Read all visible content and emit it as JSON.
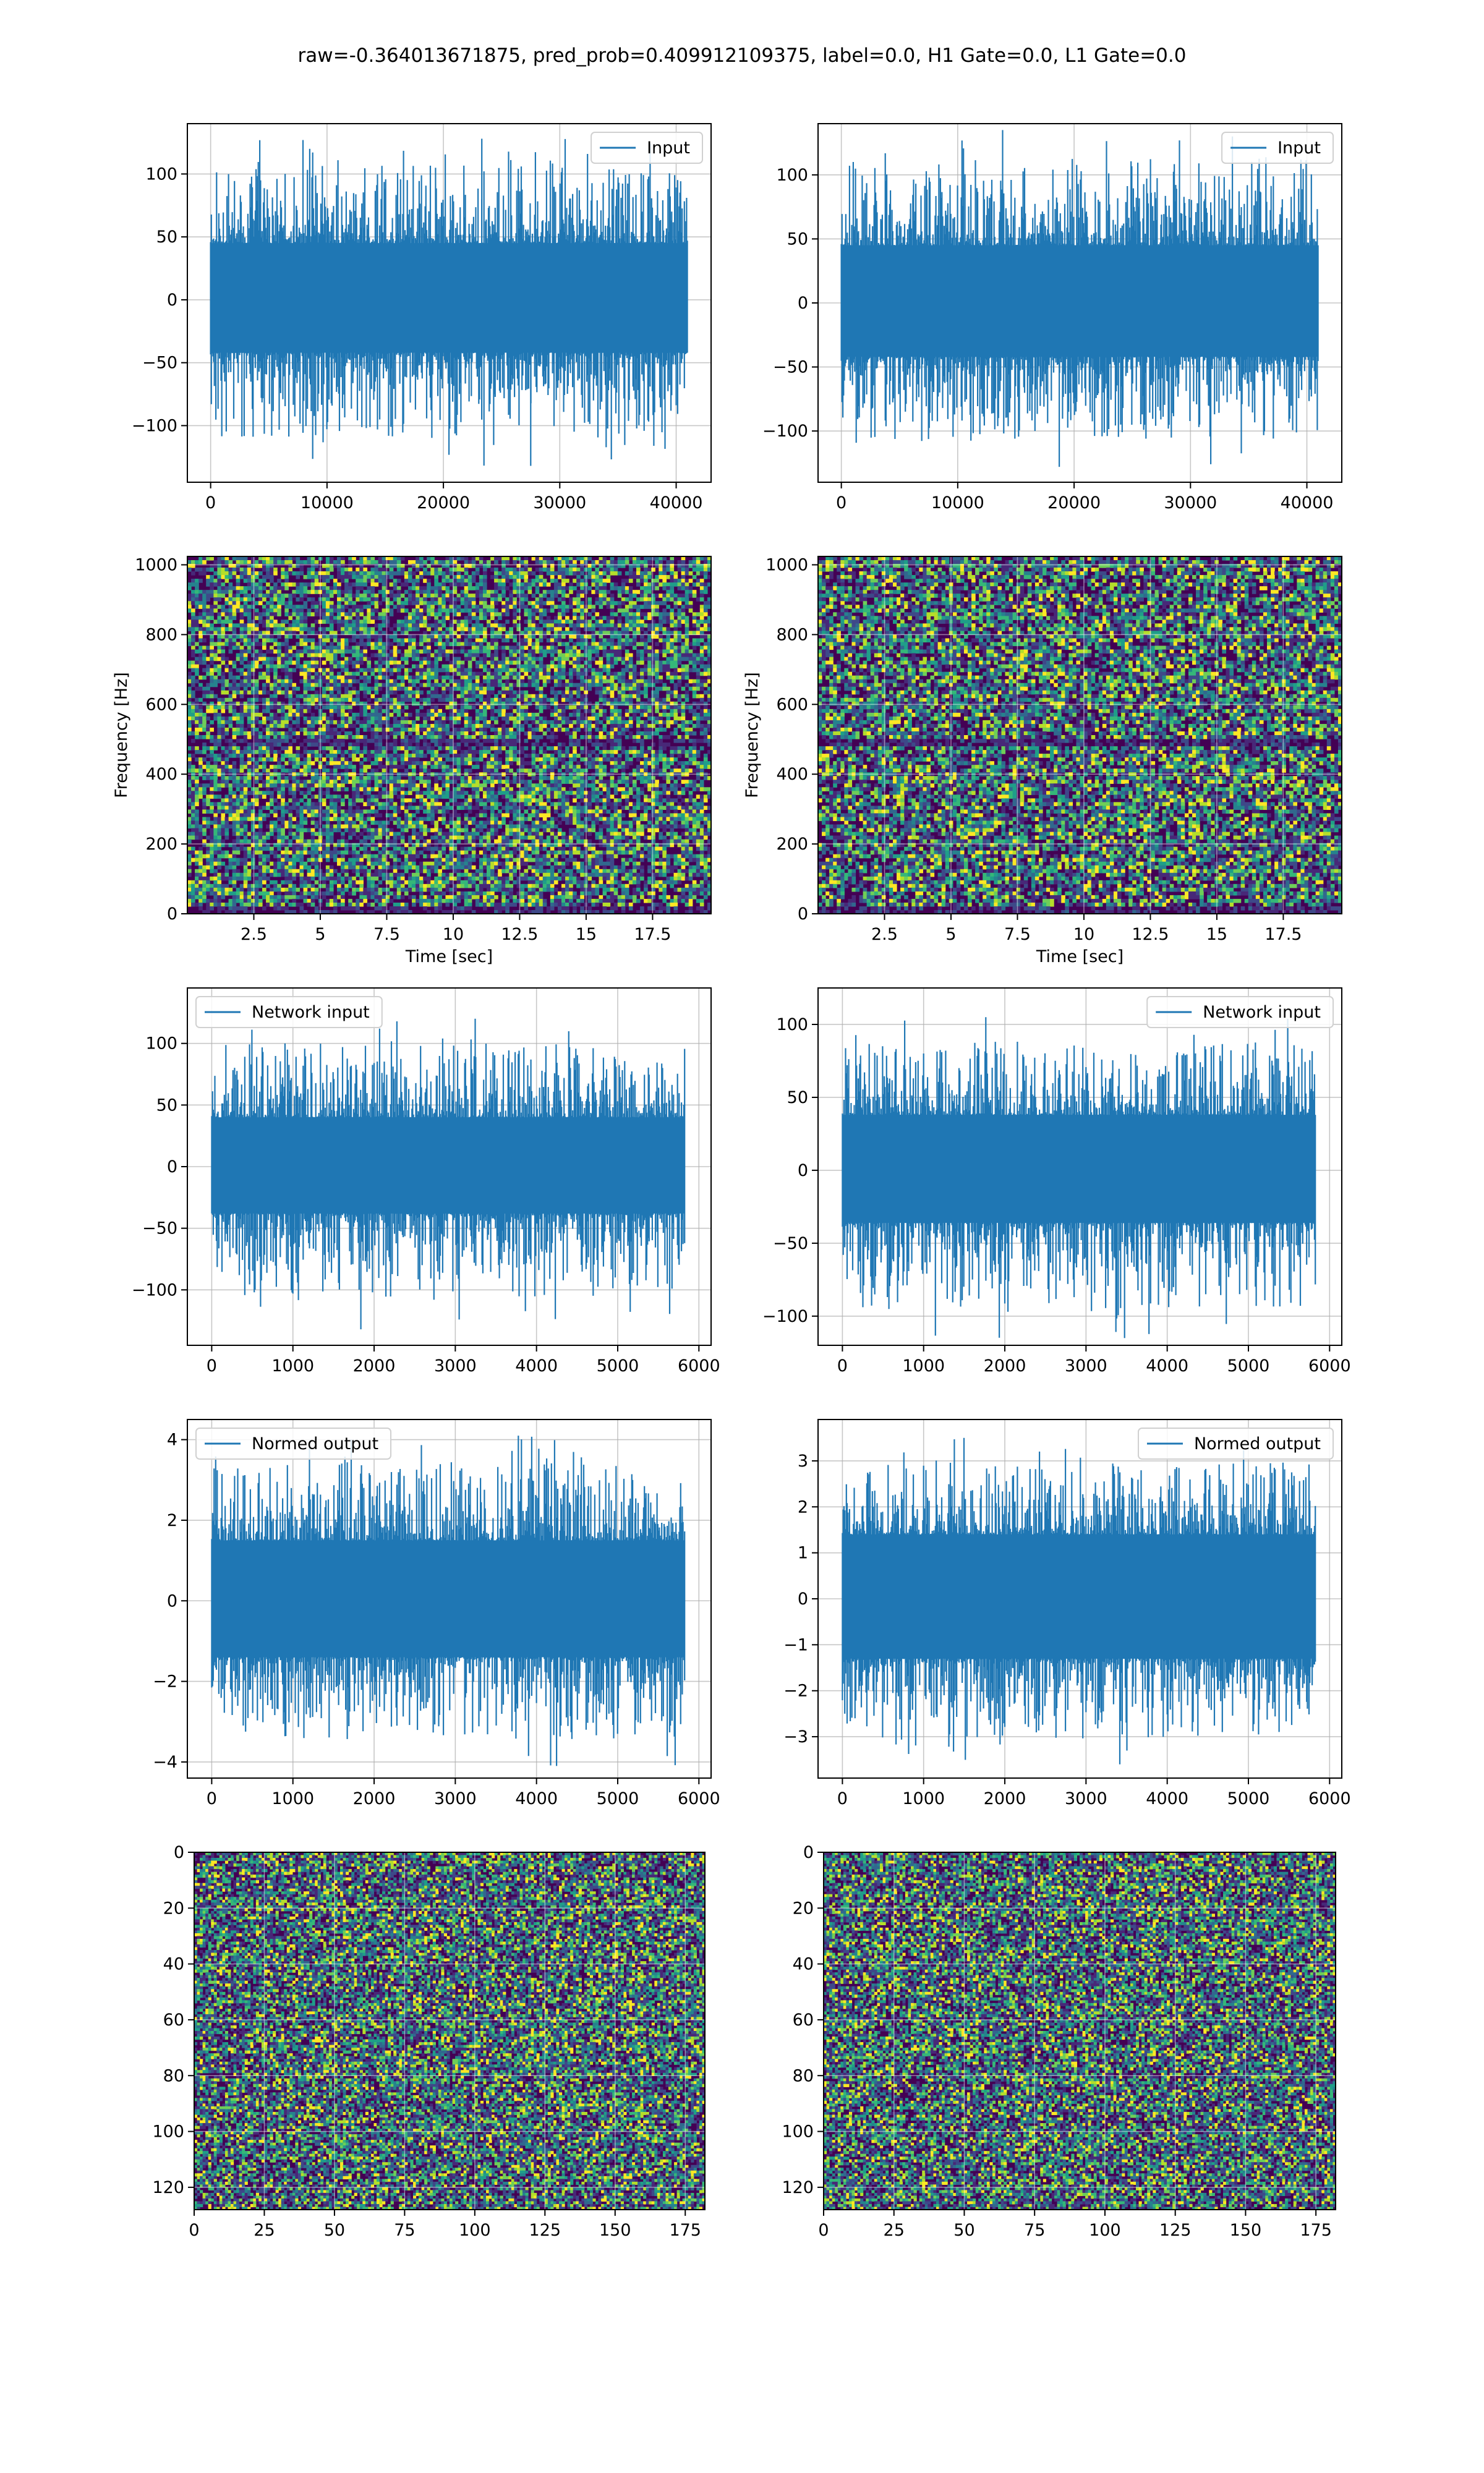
{
  "figure": {
    "suptitle": "raw=-0.364013671875, pred_prob=0.409912109375, label=0.0, H1 Gate=0.0, L1 Gate=0.0"
  },
  "colors": {
    "line": "#1f77b4",
    "viridis": [
      "#440154",
      "#482878",
      "#3e4989",
      "#31688e",
      "#26828e",
      "#1f9e89",
      "#35b779",
      "#6ece58",
      "#b5de2b",
      "#fde725"
    ]
  },
  "chart_data": [
    {
      "id": "input-left",
      "type": "line",
      "legend": "Input",
      "legend_position": "top-right",
      "grid": true,
      "xlim": [
        -2000,
        43000
      ],
      "ylim": [
        -145,
        140
      ],
      "xticks": [
        0,
        10000,
        20000,
        30000,
        40000
      ],
      "yticks": [
        -100,
        -50,
        0,
        50,
        100
      ],
      "n": 40960,
      "x_end": 40960,
      "body": [
        -42,
        45
      ],
      "spikes": [
        -132,
        128
      ],
      "samples": 640,
      "seed": 11
    },
    {
      "id": "input-right",
      "type": "line",
      "legend": "Input",
      "legend_position": "top-right",
      "grid": true,
      "xlim": [
        -2000,
        43000
      ],
      "ylim": [
        -140,
        140
      ],
      "xticks": [
        0,
        10000,
        20000,
        30000,
        40000
      ],
      "yticks": [
        -100,
        -50,
        0,
        50,
        100
      ],
      "n": 40960,
      "x_end": 40960,
      "body": [
        -42,
        45
      ],
      "spikes": [
        -128,
        135
      ],
      "samples": 640,
      "seed": 23
    },
    {
      "id": "spectrogram-left",
      "type": "heatmap",
      "grid": true,
      "xlabel": "Time [sec]",
      "ylabel": "Frequency [Hz]",
      "xlim": [
        0,
        19.7
      ],
      "ylim": [
        0,
        1024
      ],
      "xticks": [
        2.5,
        5.0,
        7.5,
        10.0,
        12.5,
        15.0,
        17.5
      ],
      "yticks": [
        0,
        200,
        400,
        600,
        800,
        1000
      ],
      "cols": 140,
      "rows": 96,
      "dark_rows": [
        0.48,
        0.01
      ],
      "seed": 31
    },
    {
      "id": "spectrogram-right",
      "type": "heatmap",
      "grid": true,
      "xlabel": "Time [sec]",
      "ylabel": "Frequency [Hz]",
      "xlim": [
        0,
        19.7
      ],
      "ylim": [
        0,
        1024
      ],
      "xticks": [
        2.5,
        5.0,
        7.5,
        10.0,
        12.5,
        15.0,
        17.5
      ],
      "yticks": [
        0,
        200,
        400,
        600,
        800,
        1000
      ],
      "cols": 140,
      "rows": 96,
      "dark_rows": [
        0.48,
        0.01
      ],
      "seed": 47
    },
    {
      "id": "network-input-left",
      "type": "line",
      "legend": "Network input",
      "legend_position": "top-left",
      "grid": true,
      "xlim": [
        -300,
        6150
      ],
      "ylim": [
        -145,
        145
      ],
      "xticks": [
        0,
        1000,
        2000,
        3000,
        4000,
        5000,
        6000
      ],
      "yticks": [
        -100,
        -50,
        0,
        50,
        100
      ],
      "n": 5824,
      "x_end": 5824,
      "body": [
        -38,
        40
      ],
      "spikes": [
        -132,
        120
      ],
      "samples": 600,
      "seed": 53
    },
    {
      "id": "network-input-right",
      "type": "line",
      "legend": "Network input",
      "legend_position": "top-right",
      "grid": true,
      "xlim": [
        -300,
        6150
      ],
      "ylim": [
        -120,
        125
      ],
      "xticks": [
        0,
        1000,
        2000,
        3000,
        4000,
        5000,
        6000
      ],
      "yticks": [
        -100,
        -50,
        0,
        50,
        100
      ],
      "n": 5824,
      "x_end": 5824,
      "body": [
        -36,
        38
      ],
      "spikes": [
        -115,
        105
      ],
      "samples": 600,
      "seed": 67
    },
    {
      "id": "normed-output-left",
      "type": "line",
      "legend": "Normed output",
      "legend_position": "top-left",
      "grid": true,
      "xlim": [
        -300,
        6150
      ],
      "ylim": [
        -4.4,
        4.5
      ],
      "xticks": [
        0,
        1000,
        2000,
        3000,
        4000,
        5000,
        6000
      ],
      "yticks": [
        -4,
        -2,
        0,
        2,
        4
      ],
      "n": 5824,
      "x_end": 5824,
      "body": [
        -1.4,
        1.5
      ],
      "spikes": [
        -4.1,
        4.1
      ],
      "samples": 600,
      "seed": 71
    },
    {
      "id": "normed-output-right",
      "type": "line",
      "legend": "Normed output",
      "legend_position": "top-right",
      "grid": true,
      "xlim": [
        -300,
        6150
      ],
      "ylim": [
        -3.9,
        3.9
      ],
      "xticks": [
        0,
        1000,
        2000,
        3000,
        4000,
        5000,
        6000
      ],
      "yticks": [
        -3,
        -2,
        -1,
        0,
        1,
        2,
        3
      ],
      "n": 5824,
      "x_end": 5824,
      "body": [
        -1.3,
        1.4
      ],
      "spikes": [
        -3.6,
        3.5
      ],
      "samples": 600,
      "seed": 83
    },
    {
      "id": "matrix-left",
      "type": "heatmap",
      "grid": true,
      "xlim": [
        0,
        182
      ],
      "ylim": [
        128,
        0
      ],
      "xticks": [
        0,
        25,
        50,
        75,
        100,
        125,
        150,
        175
      ],
      "yticks": [
        0,
        20,
        40,
        60,
        80,
        100,
        120
      ],
      "cols": 182,
      "rows": 128,
      "seed": 97
    },
    {
      "id": "matrix-right",
      "type": "heatmap",
      "grid": true,
      "xlim": [
        0,
        182
      ],
      "ylim": [
        128,
        0
      ],
      "xticks": [
        0,
        25,
        50,
        75,
        100,
        125,
        150,
        175
      ],
      "yticks": [
        0,
        20,
        40,
        60,
        80,
        100,
        120
      ],
      "cols": 182,
      "rows": 128,
      "seed": 103
    }
  ]
}
